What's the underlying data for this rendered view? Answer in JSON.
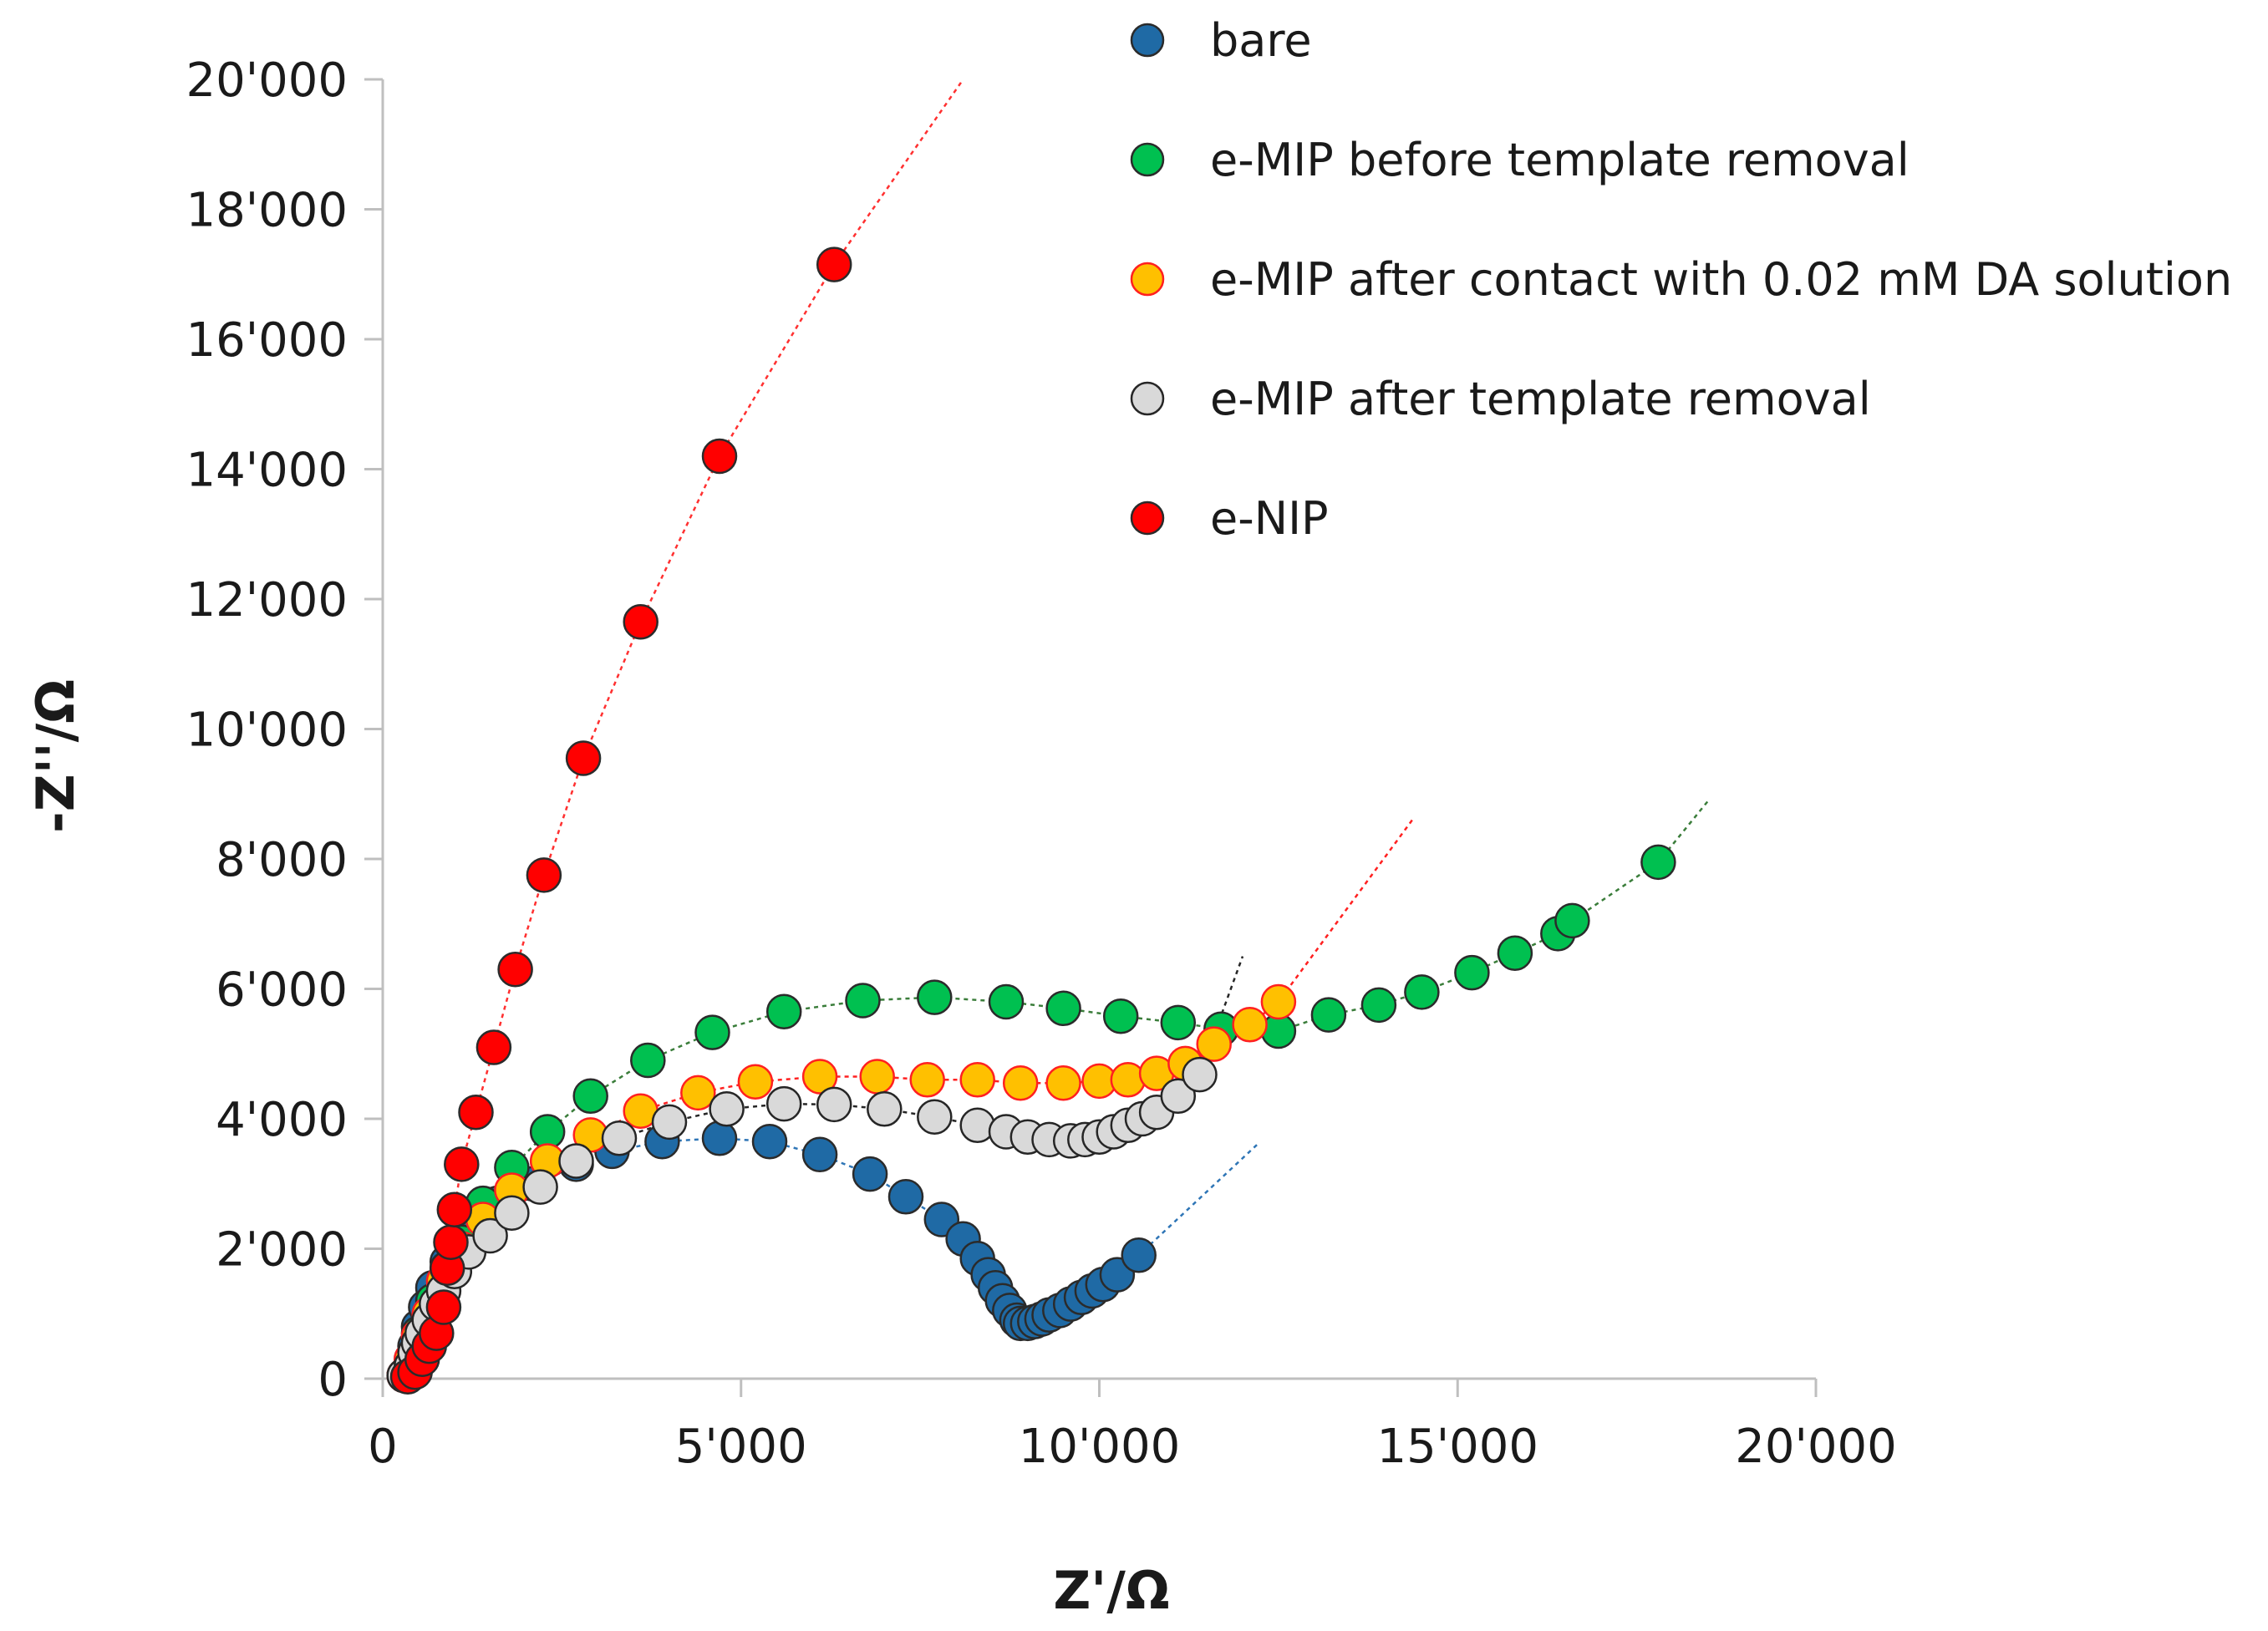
{
  "chart_data": {
    "type": "scatter",
    "title": "",
    "xlabel": "Z'/Ω",
    "ylabel": "-Z''/Ω",
    "xlim": [
      0,
      20000
    ],
    "ylim": [
      0,
      20000
    ],
    "xticks": [
      0,
      5000,
      10000,
      15000,
      20000
    ],
    "xtick_labels": [
      "0",
      "5'000",
      "10'000",
      "15'000",
      "20'000"
    ],
    "yticks": [
      0,
      2000,
      4000,
      6000,
      8000,
      10000,
      12000,
      14000,
      16000,
      18000,
      20000
    ],
    "ytick_labels": [
      "0",
      "2'000",
      "4'000",
      "6'000",
      "8'000",
      "10'000",
      "12'000",
      "14'000",
      "16'000",
      "18'000",
      "20'000"
    ],
    "grid": false,
    "legend_position": "top-right",
    "series": [
      {
        "name": "bare",
        "color": "#1f6aa5",
        "line_color": "#2e75b6",
        "fit_end": [
          12200,
          3600
        ],
        "points": [
          [
            300,
            50
          ],
          [
            400,
            250
          ],
          [
            450,
            500
          ],
          [
            500,
            800
          ],
          [
            600,
            1100
          ],
          [
            700,
            1400
          ],
          [
            900,
            1800
          ],
          [
            1200,
            2300
          ],
          [
            1600,
            2700
          ],
          [
            2100,
            3000
          ],
          [
            2700,
            3300
          ],
          [
            3200,
            3500
          ],
          [
            3900,
            3650
          ],
          [
            4700,
            3700
          ],
          [
            5400,
            3650
          ],
          [
            6100,
            3450
          ],
          [
            6800,
            3150
          ],
          [
            7300,
            2800
          ],
          [
            7800,
            2450
          ],
          [
            8100,
            2150
          ],
          [
            8300,
            1850
          ],
          [
            8450,
            1600
          ],
          [
            8550,
            1400
          ],
          [
            8650,
            1200
          ],
          [
            8750,
            1050
          ],
          [
            8850,
            900
          ],
          [
            8900,
            850
          ],
          [
            9000,
            850
          ],
          [
            9100,
            880
          ],
          [
            9200,
            920
          ],
          [
            9300,
            980
          ],
          [
            9450,
            1050
          ],
          [
            9600,
            1150
          ],
          [
            9750,
            1250
          ],
          [
            9900,
            1350
          ],
          [
            10050,
            1450
          ],
          [
            10250,
            1600
          ],
          [
            10550,
            1900
          ]
        ]
      },
      {
        "name": "e-MIP before template removal",
        "color": "#00c050",
        "line_color": "#3a7d3a",
        "fit_end": [
          18500,
          8900
        ],
        "points": [
          [
            300,
            50
          ],
          [
            400,
            300
          ],
          [
            500,
            700
          ],
          [
            700,
            1200
          ],
          [
            900,
            1700
          ],
          [
            1100,
            2100
          ],
          [
            1400,
            2700
          ],
          [
            1800,
            3250
          ],
          [
            2300,
            3800
          ],
          [
            2900,
            4350
          ],
          [
            3700,
            4900
          ],
          [
            4600,
            5330
          ],
          [
            5600,
            5650
          ],
          [
            6700,
            5820
          ],
          [
            7700,
            5870
          ],
          [
            8700,
            5800
          ],
          [
            9500,
            5700
          ],
          [
            10300,
            5580
          ],
          [
            11100,
            5480
          ],
          [
            11700,
            5380
          ],
          [
            12500,
            5350
          ],
          [
            13200,
            5600
          ],
          [
            13900,
            5750
          ],
          [
            14500,
            5950
          ],
          [
            15200,
            6250
          ],
          [
            15800,
            6550
          ],
          [
            16400,
            6850
          ],
          [
            16600,
            7050
          ],
          [
            17800,
            7950
          ]
        ]
      },
      {
        "name": "e-MIP after contact with 0.02 mM DA solution",
        "color": "#ffc000",
        "stroke": "#ff2020",
        "line_color": "#ff2020",
        "fit_end": [
          14400,
          8650
        ],
        "points": [
          [
            300,
            50
          ],
          [
            400,
            300
          ],
          [
            500,
            650
          ],
          [
            650,
            1000
          ],
          [
            850,
            1500
          ],
          [
            1100,
            2000
          ],
          [
            1400,
            2450
          ],
          [
            1800,
            2900
          ],
          [
            2300,
            3350
          ],
          [
            2900,
            3750
          ],
          [
            3600,
            4120
          ],
          [
            4400,
            4400
          ],
          [
            5200,
            4570
          ],
          [
            6100,
            4650
          ],
          [
            6900,
            4650
          ],
          [
            7600,
            4600
          ],
          [
            8300,
            4600
          ],
          [
            8900,
            4550
          ],
          [
            9500,
            4550
          ],
          [
            10000,
            4580
          ],
          [
            10400,
            4600
          ],
          [
            10800,
            4700
          ],
          [
            11200,
            4850
          ],
          [
            11600,
            5150
          ],
          [
            12100,
            5450
          ],
          [
            12500,
            5800
          ]
        ]
      },
      {
        "name": "e-MIP after template removal",
        "color": "#d9d9d9",
        "stroke": "#262626",
        "line_color": "#262626",
        "fit_end": [
          12000,
          6500
        ],
        "points": [
          [
            300,
            50
          ],
          [
            400,
            200
          ],
          [
            450,
            400
          ],
          [
            500,
            550
          ],
          [
            550,
            700
          ],
          [
            650,
            900
          ],
          [
            750,
            1150
          ],
          [
            850,
            1350
          ],
          [
            1000,
            1650
          ],
          [
            1200,
            1950
          ],
          [
            1500,
            2200
          ],
          [
            1800,
            2550
          ],
          [
            2200,
            2950
          ],
          [
            2700,
            3350
          ],
          [
            3300,
            3700
          ],
          [
            4000,
            3950
          ],
          [
            4800,
            4150
          ],
          [
            5600,
            4230
          ],
          [
            6300,
            4220
          ],
          [
            7000,
            4150
          ],
          [
            7700,
            4030
          ],
          [
            8300,
            3900
          ],
          [
            8700,
            3800
          ],
          [
            9000,
            3720
          ],
          [
            9300,
            3680
          ],
          [
            9600,
            3660
          ],
          [
            9800,
            3680
          ],
          [
            10000,
            3720
          ],
          [
            10200,
            3800
          ],
          [
            10400,
            3900
          ],
          [
            10600,
            4000
          ],
          [
            10800,
            4100
          ],
          [
            11100,
            4350
          ],
          [
            11400,
            4680
          ]
        ]
      },
      {
        "name": "e-NIP",
        "color": "#ff0000",
        "line_color": "#ff3030",
        "fit_end": [
          8100,
          20000
        ],
        "points": [
          [
            350,
            30
          ],
          [
            450,
            100
          ],
          [
            550,
            300
          ],
          [
            650,
            500
          ],
          [
            750,
            700
          ],
          [
            850,
            1100
          ],
          [
            900,
            1700
          ],
          [
            950,
            2100
          ],
          [
            1000,
            2600
          ],
          [
            1100,
            3300
          ],
          [
            1300,
            4100
          ],
          [
            1550,
            5100
          ],
          [
            1850,
            6300
          ],
          [
            2250,
            7750
          ],
          [
            2800,
            9550
          ],
          [
            3600,
            11650
          ],
          [
            4700,
            14200
          ],
          [
            6300,
            17150
          ]
        ]
      }
    ]
  }
}
